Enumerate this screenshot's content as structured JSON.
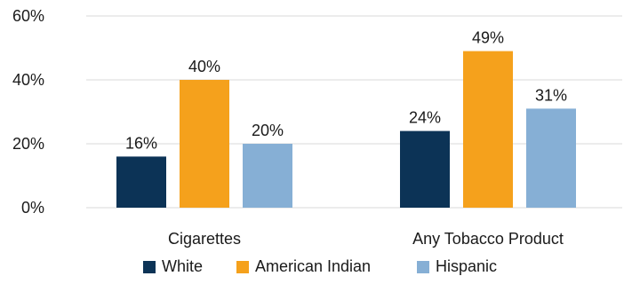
{
  "chart_data": {
    "type": "bar",
    "categories": [
      "Cigarettes",
      "Any Tobacco Product"
    ],
    "series": [
      {
        "name": "White",
        "color": "#0c3356",
        "values": [
          16,
          24
        ],
        "labels": [
          "16%",
          "24%"
        ]
      },
      {
        "name": "American Indian",
        "color": "#f5a11c",
        "values": [
          40,
          49
        ],
        "labels": [
          "40%",
          "49%"
        ]
      },
      {
        "name": "Hispanic",
        "color": "#86afd5",
        "values": [
          20,
          31
        ],
        "labels": [
          "20%",
          "31%"
        ]
      }
    ],
    "yticks": [
      0,
      20,
      40,
      60
    ],
    "ytick_labels": [
      "0%",
      "20%",
      "40%",
      "60%"
    ],
    "ylim": [
      0,
      60
    ],
    "grid": true,
    "legend_position": "bottom",
    "title": "",
    "xlabel": "",
    "ylabel": ""
  }
}
